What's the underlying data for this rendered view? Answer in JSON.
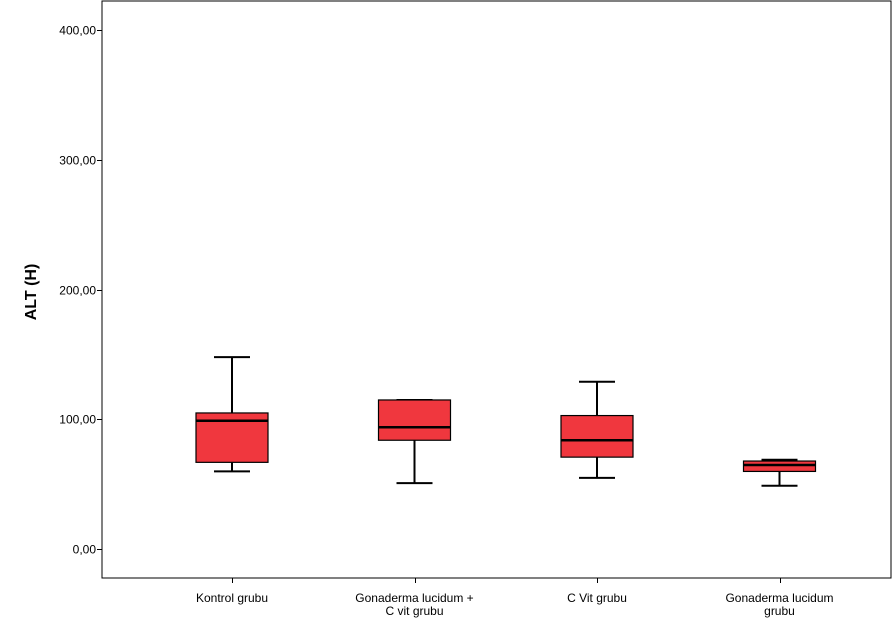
{
  "chart_data": {
    "type": "box",
    "ylabel": "ALT (H)",
    "xlabel": "",
    "ylim": [
      -22,
      422
    ],
    "y_ticks": [
      {
        "value": 0,
        "label": "0,00"
      },
      {
        "value": 100,
        "label": "100,00"
      },
      {
        "value": 200,
        "label": "200,00"
      },
      {
        "value": 300,
        "label": "300,00"
      },
      {
        "value": 400,
        "label": "400,00"
      }
    ],
    "categories": [
      [
        "Kontrol grubu"
      ],
      [
        "Gonaderma lucidum +",
        "C vit grubu"
      ],
      [
        "C Vit grubu"
      ],
      [
        "Gonaderma lucidum",
        "grubu"
      ]
    ],
    "boxes": [
      {
        "min": 60,
        "q1": 67,
        "median": 99,
        "q3": 105,
        "max": 148
      },
      {
        "min": 51,
        "q1": 84,
        "median": 94,
        "q3": 115,
        "max": 115
      },
      {
        "min": 55,
        "q1": 71,
        "median": 84,
        "q3": 103,
        "max": 129
      },
      {
        "min": 49,
        "q1": 60,
        "median": 65,
        "q3": 68,
        "max": 69
      }
    ],
    "box_color": "#f0373e",
    "grid": false,
    "legend": "none"
  }
}
